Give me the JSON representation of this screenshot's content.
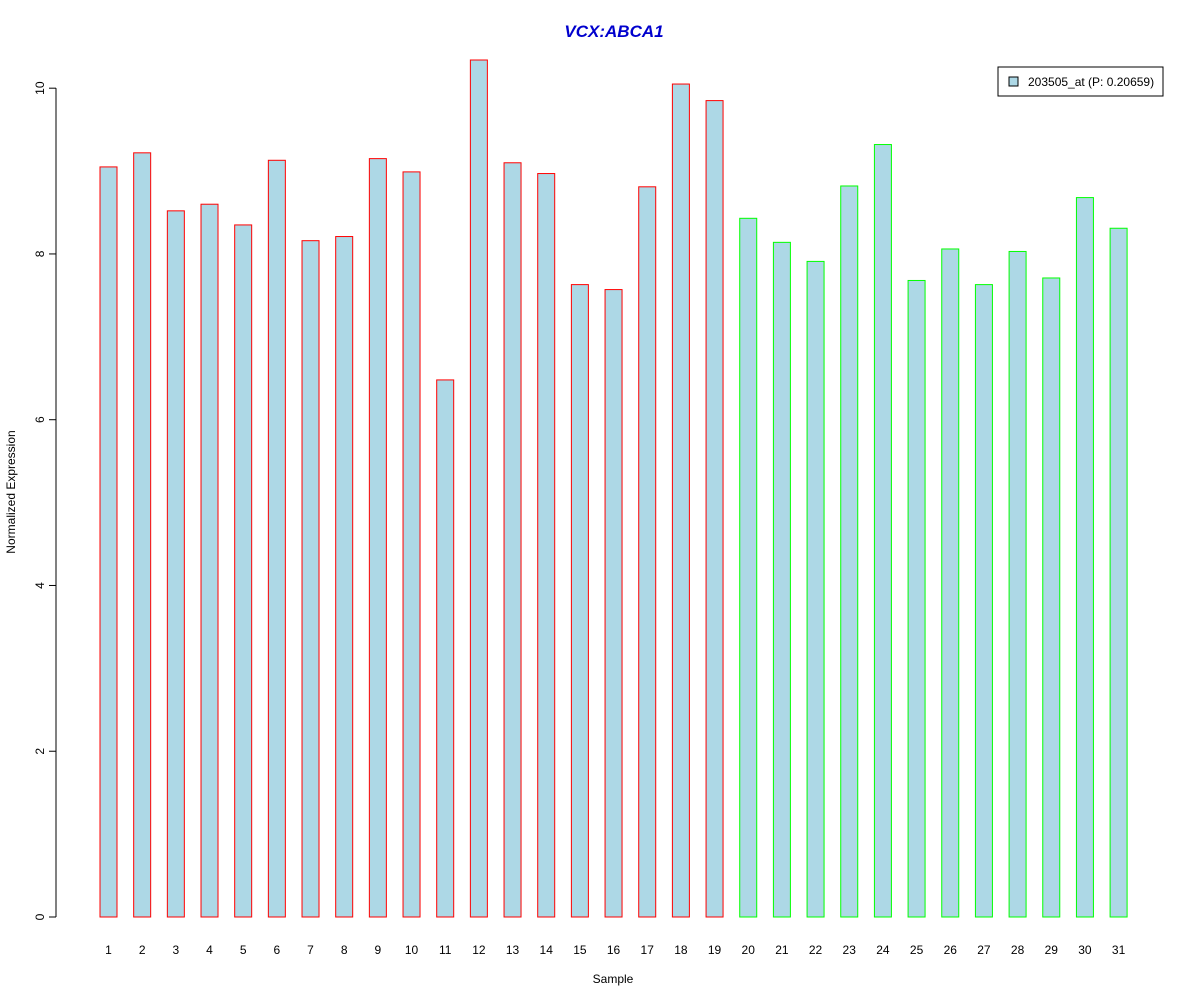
{
  "chart_data": {
    "type": "bar",
    "title": "VCX:ABCA1",
    "xlabel": "Sample",
    "ylabel": "Normalized Expression",
    "categories": [
      "1",
      "2",
      "3",
      "4",
      "5",
      "6",
      "7",
      "8",
      "9",
      "10",
      "11",
      "12",
      "13",
      "14",
      "15",
      "16",
      "17",
      "18",
      "19",
      "20",
      "21",
      "22",
      "23",
      "24",
      "25",
      "26",
      "27",
      "28",
      "29",
      "30",
      "31"
    ],
    "values": [
      9.05,
      9.22,
      8.52,
      8.6,
      8.35,
      9.13,
      8.16,
      8.21,
      9.15,
      8.99,
      6.48,
      10.34,
      9.1,
      8.97,
      7.63,
      7.57,
      8.81,
      10.05,
      9.85,
      8.43,
      8.14,
      7.91,
      8.82,
      9.32,
      7.68,
      8.06,
      7.63,
      8.03,
      7.71,
      8.68,
      8.31
    ],
    "groups": [
      "red",
      "red",
      "red",
      "red",
      "red",
      "red",
      "red",
      "red",
      "red",
      "red",
      "red",
      "red",
      "red",
      "red",
      "red",
      "red",
      "red",
      "red",
      "red",
      "green",
      "green",
      "green",
      "green",
      "green",
      "green",
      "green",
      "green",
      "green",
      "green",
      "green",
      "green"
    ],
    "ylim": [
      0,
      10.34
    ],
    "yticks": [
      "0",
      "2",
      "4",
      "6",
      "8",
      "10"
    ],
    "legend": {
      "label": "203505_at (P: 0.20659)",
      "position": "top-right"
    },
    "grid": false
  },
  "colors": {
    "bar_fill": "#ADD8E6",
    "group_red": "#FF0000",
    "group_green": "#00FF00",
    "title": "#0000CD",
    "axis": "#000000"
  }
}
